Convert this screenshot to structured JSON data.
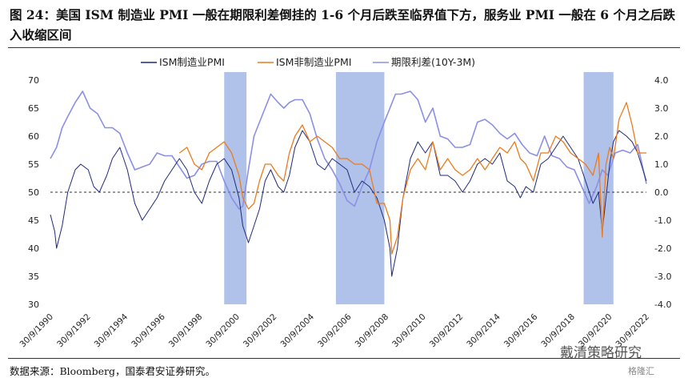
{
  "figure": {
    "title": "图 24：美国 ISM 制造业 PMI 一般在期限利差倒挂的 1-6 个月后跌至临界值下方，服务业 PMI 一般在 6 个月之后跌入收缩区间",
    "source": "数据来源：Bloomberg，国泰君安证券研究。",
    "watermark": "戴清策略研究",
    "watermark2": "格隆汇"
  },
  "chart_data": {
    "type": "line",
    "left_axis": {
      "min": 30,
      "max": 70,
      "step": 5,
      "ticks": [
        "30",
        "35",
        "40",
        "45",
        "50",
        "55",
        "60",
        "65",
        "70"
      ]
    },
    "right_axis": {
      "min": -4,
      "max": 4,
      "step": 1,
      "ticks": [
        "-4.0",
        "-3.0",
        "-2.0",
        "-1.0",
        "0.0",
        "1.0",
        "2.0",
        "3.0",
        "4.0"
      ]
    },
    "x_range": [
      1990.67,
      2022.67
    ],
    "x_ticks": [
      "30/9/1990",
      "30/9/1992",
      "30/9/1994",
      "30/9/1996",
      "30/9/1998",
      "30/9/2000",
      "30/9/2002",
      "30/9/2004",
      "30/9/2006",
      "30/9/2008",
      "30/9/2010",
      "30/9/2012",
      "30/9/2014",
      "30/9/2016",
      "30/9/2018",
      "30/9/2020",
      "30/9/2022"
    ],
    "reference_line": {
      "axis": "left",
      "value": 50,
      "style": "dashed"
    },
    "shaded_periods": [
      {
        "start": 2000.0,
        "end": 2001.2
      },
      {
        "start": 2006.0,
        "end": 2008.6
      },
      {
        "start": 2019.3,
        "end": 2020.9
      }
    ],
    "colors": {
      "ism": "#1f2a7a",
      "non_mfg": "#ea7b1f",
      "spread": "#8b8fe6",
      "shade": "#a9bbe8"
    },
    "legend_position": "top",
    "series": [
      {
        "name": "ISM制造业PMI",
        "axis": "left",
        "x": [
          1990.67,
          1990.9,
          1991.0,
          1991.3,
          1991.6,
          1992.0,
          1992.3,
          1992.7,
          1993.0,
          1993.3,
          1993.7,
          1994.0,
          1994.4,
          1994.8,
          1995.2,
          1995.6,
          1996.0,
          1996.4,
          1996.8,
          1997.2,
          1997.6,
          1998.0,
          1998.4,
          1998.8,
          1999.2,
          1999.6,
          2000.0,
          2000.4,
          2000.8,
          2001.0,
          2001.3,
          2001.6,
          2001.9,
          2002.2,
          2002.5,
          2002.9,
          2003.2,
          2003.5,
          2003.8,
          2004.2,
          2004.6,
          2005.0,
          2005.4,
          2005.8,
          2006.2,
          2006.6,
          2007.0,
          2007.4,
          2007.8,
          2008.2,
          2008.6,
          2008.9,
          2009.0,
          2009.3,
          2009.6,
          2010.0,
          2010.4,
          2010.8,
          2011.2,
          2011.6,
          2012.0,
          2012.4,
          2012.8,
          2013.2,
          2013.6,
          2014.0,
          2014.4,
          2014.8,
          2015.2,
          2015.6,
          2015.9,
          2016.2,
          2016.6,
          2017.0,
          2017.4,
          2017.8,
          2018.2,
          2018.6,
          2019.0,
          2019.4,
          2019.8,
          2020.1,
          2020.3,
          2020.5,
          2020.7,
          2020.9,
          2021.2,
          2021.6,
          2021.9,
          2022.2,
          2022.67
        ],
        "values": [
          46,
          43,
          40,
          44,
          50,
          54,
          55,
          54,
          51,
          50,
          53,
          56,
          58,
          54,
          48,
          45,
          47,
          49,
          52,
          54,
          56,
          54,
          50,
          48,
          52,
          55,
          56,
          54,
          49,
          44,
          41,
          44,
          47,
          52,
          54,
          51,
          50,
          53,
          58,
          61,
          59,
          55,
          54,
          56,
          55,
          54,
          50,
          52,
          51,
          49,
          45,
          40,
          35,
          40,
          49,
          56,
          59,
          57,
          59,
          53,
          53,
          52,
          50,
          52,
          55,
          56,
          55,
          57,
          52,
          51,
          49,
          51,
          50,
          55,
          56,
          58,
          60,
          58,
          56,
          52,
          48,
          50,
          43,
          49,
          55,
          59,
          61,
          60,
          59,
          57,
          52
        ]
      },
      {
        "name": "ISM非制造业PMI",
        "axis": "left",
        "x": [
          1997.6,
          1998.0,
          1998.4,
          1998.8,
          1999.2,
          1999.6,
          2000.0,
          2000.4,
          2000.8,
          2001.0,
          2001.3,
          2001.6,
          2001.9,
          2002.2,
          2002.5,
          2002.9,
          2003.2,
          2003.5,
          2003.8,
          2004.2,
          2004.6,
          2005.0,
          2005.4,
          2005.8,
          2006.2,
          2006.6,
          2007.0,
          2007.4,
          2007.8,
          2008.2,
          2008.6,
          2008.9,
          2009.0,
          2009.3,
          2009.6,
          2010.0,
          2010.4,
          2010.8,
          2011.2,
          2011.6,
          2012.0,
          2012.4,
          2012.8,
          2013.2,
          2013.6,
          2014.0,
          2014.4,
          2014.8,
          2015.2,
          2015.6,
          2015.9,
          2016.2,
          2016.6,
          2017.0,
          2017.4,
          2017.8,
          2018.2,
          2018.6,
          2019.0,
          2019.4,
          2019.8,
          2020.1,
          2020.3,
          2020.5,
          2020.7,
          2020.9,
          2021.2,
          2021.6,
          2021.9,
          2022.2,
          2022.67
        ],
        "values": [
          57,
          58,
          55,
          54,
          57,
          58,
          59,
          57,
          53,
          49,
          47,
          48,
          52,
          55,
          55,
          53,
          52,
          57,
          60,
          62,
          59,
          60,
          59,
          58,
          56,
          56,
          55,
          55,
          54,
          48,
          48,
          45,
          39,
          42,
          49,
          54,
          56,
          54,
          59,
          54,
          56,
          54,
          53,
          54,
          56,
          54,
          56,
          58,
          57,
          59,
          56,
          55,
          52,
          57,
          57,
          60,
          59,
          57,
          56,
          55,
          53,
          57,
          42,
          55,
          58,
          56,
          63,
          66,
          62,
          57,
          57
        ]
      },
      {
        "name": "期限利差(10Y-3M)",
        "axis": "right",
        "x": [
          1990.67,
          1991.0,
          1991.3,
          1991.6,
          1992.0,
          1992.4,
          1992.8,
          1993.2,
          1993.6,
          1994.0,
          1994.4,
          1994.8,
          1995.2,
          1995.6,
          1996.0,
          1996.4,
          1996.8,
          1997.2,
          1997.6,
          1998.0,
          1998.4,
          1998.8,
          1999.2,
          1999.6,
          2000.0,
          2000.4,
          2000.8,
          2001.0,
          2001.3,
          2001.6,
          2001.9,
          2002.2,
          2002.5,
          2002.9,
          2003.2,
          2003.5,
          2003.8,
          2004.2,
          2004.6,
          2005.0,
          2005.4,
          2005.8,
          2006.2,
          2006.6,
          2007.0,
          2007.4,
          2007.8,
          2008.2,
          2008.6,
          2008.9,
          2009.2,
          2009.5,
          2010.0,
          2010.4,
          2010.8,
          2011.2,
          2011.6,
          2012.0,
          2012.4,
          2012.8,
          2013.2,
          2013.6,
          2014.0,
          2014.4,
          2014.8,
          2015.2,
          2015.6,
          2016.0,
          2016.4,
          2016.8,
          2017.2,
          2017.6,
          2018.0,
          2018.4,
          2018.8,
          2019.2,
          2019.6,
          2020.0,
          2020.3,
          2020.6,
          2021.0,
          2021.4,
          2021.8,
          2022.2,
          2022.67
        ],
        "values": [
          1.2,
          1.6,
          2.3,
          2.7,
          3.2,
          3.6,
          3.0,
          2.8,
          2.3,
          2.3,
          2.1,
          1.4,
          0.8,
          0.9,
          1.0,
          1.4,
          1.3,
          1.3,
          0.9,
          0.5,
          0.6,
          1.0,
          1.1,
          1.1,
          0.4,
          -0.2,
          -0.6,
          -0.5,
          0.8,
          2.0,
          2.5,
          3.0,
          3.5,
          3.2,
          3.0,
          3.2,
          3.3,
          3.3,
          2.8,
          1.9,
          1.2,
          0.8,
          0.3,
          -0.3,
          -0.5,
          0.2,
          0.8,
          1.8,
          2.5,
          3.0,
          3.5,
          3.5,
          3.6,
          3.3,
          2.5,
          3.0,
          2.0,
          1.9,
          1.6,
          1.6,
          1.7,
          2.5,
          2.6,
          2.4,
          2.1,
          1.9,
          2.1,
          1.7,
          1.4,
          1.3,
          2.0,
          1.3,
          1.2,
          0.9,
          0.8,
          0.2,
          -0.4,
          0.2,
          0.8,
          0.6,
          1.4,
          1.5,
          1.4,
          1.7,
          0.3
        ]
      }
    ]
  }
}
